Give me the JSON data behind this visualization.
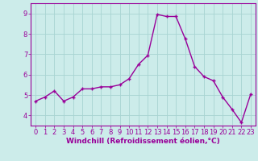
{
  "x": [
    0,
    1,
    2,
    3,
    4,
    5,
    6,
    7,
    8,
    9,
    10,
    11,
    12,
    13,
    14,
    15,
    16,
    17,
    18,
    19,
    20,
    21,
    22,
    23
  ],
  "y": [
    4.7,
    4.9,
    5.2,
    4.7,
    4.9,
    5.3,
    5.3,
    5.4,
    5.4,
    5.5,
    5.8,
    6.5,
    6.95,
    8.95,
    8.85,
    8.85,
    7.75,
    6.4,
    5.9,
    5.7,
    4.9,
    4.3,
    3.65,
    5.05
  ],
  "line_color": "#990099",
  "marker": "+",
  "marker_size": 3,
  "linewidth": 1.0,
  "bg_color": "#ccecea",
  "grid_color": "#a8d4d2",
  "xlabel": "Windchill (Refroidissement éolien,°C)",
  "xlabel_fontsize": 6.5,
  "tick_fontsize": 6,
  "ylim": [
    3.5,
    9.5
  ],
  "xlim": [
    -0.5,
    23.5
  ],
  "yticks": [
    4,
    5,
    6,
    7,
    8,
    9
  ],
  "xticks": [
    0,
    1,
    2,
    3,
    4,
    5,
    6,
    7,
    8,
    9,
    10,
    11,
    12,
    13,
    14,
    15,
    16,
    17,
    18,
    19,
    20,
    21,
    22,
    23
  ],
  "title_color": "#990099",
  "axis_color": "#990099"
}
